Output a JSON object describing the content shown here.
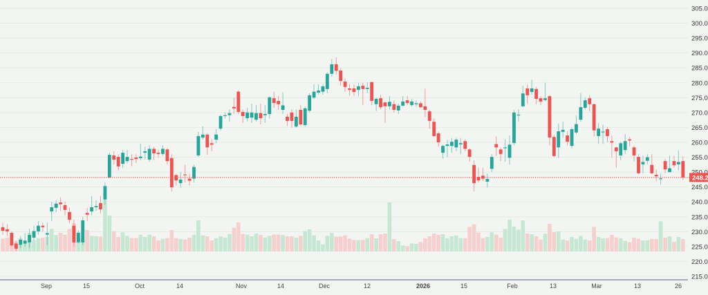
{
  "chart_data": {
    "type": "candlestick",
    "colors": {
      "up": "#26a69a",
      "down": "#ef5350",
      "volume_up": "#c6e7d3",
      "volume_down": "#f6cfcf",
      "background": "#f2f5f2",
      "last_price_line": "#ef5350"
    },
    "ylim": [
      215,
      305
    ],
    "y_ticks": [
      "305.0",
      "300.0",
      "295.0",
      "290.0",
      "285.0",
      "280.0",
      "275.0",
      "270.0",
      "265.0",
      "260.0",
      "255.0",
      "250.0",
      "245.0",
      "240.0",
      "235.0",
      "230.0",
      "225.0",
      "220.0",
      "215.0"
    ],
    "x_ticks": [
      {
        "label": "Sep",
        "bold": false
      },
      {
        "label": "15",
        "bold": false
      },
      {
        "label": "Oct",
        "bold": false
      },
      {
        "label": "14",
        "bold": false
      },
      {
        "label": "Nov",
        "bold": false
      },
      {
        "label": "14",
        "bold": false
      },
      {
        "label": "Dec",
        "bold": false
      },
      {
        "label": "12",
        "bold": false
      },
      {
        "label": "2026",
        "bold": true
      },
      {
        "label": "15",
        "bold": false
      },
      {
        "label": "Feb",
        "bold": false
      },
      {
        "label": "13",
        "bold": false
      },
      {
        "label": "Mar",
        "bold": false
      },
      {
        "label": "13",
        "bold": false
      },
      {
        "label": "26",
        "bold": false
      }
    ],
    "last_price": "248.2",
    "grid": true,
    "ohlc": [
      [
        231.5,
        233,
        229,
        230.3
      ],
      [
        230.8,
        232.5,
        228.5,
        230.1
      ],
      [
        229.6,
        230,
        225,
        225.4
      ],
      [
        226,
        227,
        223.5,
        224.3
      ],
      [
        225.6,
        228.5,
        224.5,
        227.3
      ],
      [
        226,
        229.5,
        225,
        227
      ],
      [
        226.4,
        231,
        224.5,
        228.9
      ],
      [
        228,
        232,
        227,
        230.2
      ],
      [
        230.1,
        233.5,
        229,
        232
      ],
      [
        232,
        233,
        230,
        231.5
      ],
      [
        229,
        233,
        225.5,
        229.5
      ],
      [
        236.8,
        240,
        233.5,
        238.2
      ],
      [
        238,
        240.5,
        236.5,
        239.4
      ],
      [
        239.8,
        241.5,
        237,
        239.2
      ],
      [
        238.9,
        240,
        235.5,
        237.3
      ],
      [
        236.6,
        238,
        233,
        234
      ],
      [
        232,
        234,
        225,
        226.4
      ],
      [
        226.4,
        230.5,
        226,
        229.6
      ],
      [
        226.4,
        235,
        225.5,
        233.8
      ],
      [
        236.3,
        238,
        233.5,
        235.7
      ],
      [
        236.8,
        242,
        235.5,
        238.2
      ],
      [
        238.2,
        240.5,
        237,
        238.6
      ],
      [
        239.6,
        242,
        236,
        237.5
      ],
      [
        240.8,
        246.5,
        239,
        245.3
      ],
      [
        248.2,
        256.5,
        248,
        255.8
      ],
      [
        255.6,
        257,
        252.5,
        254.2
      ],
      [
        255.1,
        256,
        250.5,
        251.9
      ],
      [
        252.8,
        257.5,
        251.5,
        256.5
      ],
      [
        253.7,
        257.5,
        253,
        255.1
      ],
      [
        254.4,
        256,
        252,
        254.2
      ],
      [
        254.9,
        256,
        253,
        254.4
      ],
      [
        254.7,
        259.5,
        254,
        255.2
      ],
      [
        256.5,
        258.5,
        254.2,
        257
      ],
      [
        254.2,
        259,
        253.5,
        257.8
      ],
      [
        257.8,
        258.5,
        254,
        256.3
      ],
      [
        256.5,
        257.5,
        254.8,
        256.1
      ],
      [
        256.1,
        259,
        255.5,
        257.8
      ],
      [
        257.6,
        258,
        252.6,
        253.7
      ],
      [
        254.7,
        256,
        243.5,
        244.9
      ],
      [
        249,
        249.5,
        245.5,
        247.2
      ],
      [
        246.3,
        250,
        244.8,
        247.5
      ],
      [
        249.2,
        252.5,
        246.5,
        249
      ],
      [
        247.8,
        249.5,
        245.5,
        247.1
      ],
      [
        247.8,
        252.5,
        246.5,
        251.7
      ],
      [
        255.6,
        263.5,
        255,
        262.1
      ],
      [
        261.6,
        265.3,
        261,
        262.6
      ],
      [
        262.6,
        263,
        255.8,
        258.3
      ],
      [
        259.7,
        261,
        257,
        259.2
      ],
      [
        260.9,
        264.5,
        259.7,
        262.6
      ],
      [
        264.6,
        269.3,
        264,
        268.8
      ],
      [
        268.9,
        270,
        268,
        269.1
      ],
      [
        269.1,
        271,
        267,
        269.8
      ],
      [
        271.9,
        275,
        269.5,
        271.4
      ],
      [
        277,
        277.5,
        269.5,
        270.2
      ],
      [
        270.2,
        271,
        266.5,
        268.8
      ],
      [
        268.1,
        271.5,
        267,
        270
      ],
      [
        268.3,
        273,
        266.5,
        270
      ],
      [
        267.6,
        272.5,
        267,
        269.8
      ],
      [
        269.8,
        273,
        266,
        268.1
      ],
      [
        269.1,
        272.5,
        266.5,
        269.5
      ],
      [
        269.5,
        275.5,
        268,
        275.1
      ],
      [
        274.8,
        277,
        271.5,
        273.2
      ],
      [
        273.9,
        275.5,
        271,
        272.8
      ],
      [
        270.9,
        276.8,
        269.5,
        272.4
      ],
      [
        268.6,
        269.5,
        265.5,
        267.2
      ],
      [
        270,
        271,
        264.9,
        267.2
      ],
      [
        265.3,
        271,
        264.9,
        268.6
      ],
      [
        270.9,
        272.5,
        265.5,
        266
      ],
      [
        265.8,
        272,
        265.3,
        271.4
      ],
      [
        270.6,
        276.5,
        270,
        275.8
      ],
      [
        275,
        279.5,
        274.5,
        277
      ],
      [
        276.7,
        279.5,
        276,
        277.4
      ],
      [
        277,
        279.5,
        276,
        278.8
      ],
      [
        277.9,
        283.5,
        276.5,
        283
      ],
      [
        283,
        288,
        282,
        286.2
      ],
      [
        286.2,
        288.5,
        282.8,
        284
      ],
      [
        284.1,
        285,
        279,
        280.6
      ],
      [
        280.4,
        281.5,
        277,
        278.6
      ],
      [
        278.1,
        279.5,
        275.6,
        277.6
      ],
      [
        278.1,
        279.5,
        275.5,
        276.9
      ],
      [
        277.6,
        280,
        275.5,
        278.8
      ],
      [
        279,
        280,
        272.5,
        277.9
      ],
      [
        277.9,
        280.2,
        276.5,
        278.3
      ],
      [
        280.2,
        280.5,
        272.5,
        273.9
      ],
      [
        272.8,
        275,
        270.5,
        274.6
      ],
      [
        274.8,
        276,
        271,
        271.8
      ],
      [
        273.4,
        273.8,
        266.6,
        272.1
      ],
      [
        272.1,
        275.5,
        271,
        273.6
      ],
      [
        272.8,
        274,
        270,
        270.9
      ],
      [
        270.7,
        273,
        269.5,
        272.3
      ],
      [
        272.3,
        275.5,
        272,
        273.7
      ],
      [
        274.1,
        275.5,
        272.5,
        273.2
      ],
      [
        272.5,
        274.5,
        272,
        273.7
      ],
      [
        272.8,
        274,
        272,
        273.1
      ],
      [
        273.1,
        273.7,
        271.5,
        271.8
      ],
      [
        272.1,
        278,
        268.5,
        270.9
      ],
      [
        270.4,
        271,
        264.5,
        267.2
      ],
      [
        266.9,
        268,
        261.8,
        262.1
      ],
      [
        263,
        263.5,
        258.5,
        260
      ],
      [
        256.5,
        259.2,
        254.5,
        258.8
      ],
      [
        258.8,
        260.8,
        255,
        259.3
      ],
      [
        258.8,
        261.5,
        256.5,
        260.2
      ],
      [
        258.3,
        261.5,
        257,
        260.9
      ],
      [
        259.3,
        261.5,
        256,
        259.7
      ],
      [
        260.4,
        261,
        257,
        257.8
      ],
      [
        257.6,
        258,
        253.5,
        255.1
      ],
      [
        252.4,
        254,
        243.5,
        246.3
      ],
      [
        248.4,
        251.5,
        246.5,
        247.2
      ],
      [
        248.8,
        251.5,
        247,
        247.8
      ],
      [
        246.8,
        249.5,
        244.8,
        247.7
      ],
      [
        251.1,
        256,
        250,
        255.1
      ],
      [
        259.4,
        262,
        255.5,
        258.3
      ],
      [
        257.6,
        258.3,
        253.7,
        256.1
      ],
      [
        258.1,
        261,
        253.5,
        258.3
      ],
      [
        254.8,
        262.3,
        252.5,
        259.2
      ],
      [
        259.8,
        270.8,
        259,
        270
      ],
      [
        269.1,
        271,
        267,
        269.3
      ],
      [
        272.1,
        279,
        271.8,
        276.4
      ],
      [
        278.1,
        279.4,
        273,
        275.8
      ],
      [
        276.9,
        281,
        276,
        278.1
      ],
      [
        277.9,
        278.6,
        272.8,
        274.6
      ],
      [
        274.8,
        275.5,
        272.5,
        273.7
      ],
      [
        274.2,
        280,
        273.8,
        274.8
      ],
      [
        275.5,
        275.8,
        259,
        261.6
      ],
      [
        261.8,
        262.5,
        255,
        255.4
      ],
      [
        258.3,
        266.3,
        254.8,
        263.7
      ],
      [
        263.5,
        267,
        261.5,
        264.2
      ],
      [
        262.3,
        263.8,
        259,
        260.2
      ],
      [
        258.8,
        265,
        258,
        264.4
      ],
      [
        263.3,
        269,
        262.8,
        266.1
      ],
      [
        267.6,
        276.5,
        267,
        271.8
      ],
      [
        271.6,
        275,
        271,
        274.1
      ],
      [
        274.8,
        275.8,
        270.4,
        272.8
      ],
      [
        272.8,
        273,
        262,
        264
      ],
      [
        262.1,
        266.5,
        259.5,
        264.6
      ],
      [
        263.4,
        266,
        259.4,
        263.6
      ],
      [
        264.4,
        265.2,
        260,
        262.1
      ],
      [
        260.4,
        262.3,
        254.8,
        259.9
      ],
      [
        258.3,
        258.5,
        251.5,
        257
      ],
      [
        255.6,
        260.2,
        254,
        259.7
      ],
      [
        257.4,
        262.8,
        256,
        260.4
      ],
      [
        261,
        261.8,
        258.6,
        260.6
      ],
      [
        258.3,
        258.8,
        253.6,
        255.6
      ],
      [
        255.1,
        256,
        249.3,
        249.6
      ],
      [
        252.6,
        255.5,
        249.6,
        253.4
      ],
      [
        253.8,
        256,
        252.6,
        255
      ],
      [
        252.4,
        256,
        249.3,
        249.6
      ],
      [
        249.1,
        251,
        246.9,
        248.6
      ],
      [
        247.8,
        249.5,
        245.8,
        247.9
      ],
      [
        253.7,
        254.5,
        249.6,
        250.9
      ],
      [
        250,
        255.5,
        250,
        251.3
      ],
      [
        253.7,
        255.5,
        251.5,
        252.3
      ],
      [
        252.6,
        257.2,
        250.6,
        253.4
      ],
      [
        253.7,
        255.3,
        247.3,
        248.2
      ]
    ],
    "volume": [
      56,
      60,
      28,
      43,
      58,
      38,
      81,
      48,
      58,
      60,
      63,
      98,
      71,
      81,
      73,
      98,
      123,
      83,
      63,
      93,
      68,
      66,
      65,
      223,
      156,
      88,
      63,
      83,
      68,
      58,
      58,
      73,
      63,
      73,
      66,
      48,
      55,
      58,
      93,
      58,
      54,
      52,
      60,
      73,
      135,
      70,
      66,
      48,
      58,
      66,
      60,
      76,
      103,
      126,
      76,
      73,
      66,
      78,
      72,
      61,
      68,
      73,
      73,
      71,
      66,
      66,
      60,
      68,
      88,
      96,
      70,
      48,
      31,
      68,
      80,
      65,
      65,
      70,
      56,
      50,
      49,
      50,
      58,
      75,
      57,
      75,
      78,
      213,
      54,
      45,
      26,
      23,
      35,
      33,
      41,
      57,
      66,
      78,
      72,
      75,
      58,
      66,
      69,
      58,
      58,
      107,
      118,
      82,
      58,
      63,
      83,
      73,
      60,
      98,
      138,
      108,
      95,
      135,
      78,
      75,
      66,
      52,
      77,
      120,
      84,
      87,
      52,
      48,
      63,
      55,
      68,
      52,
      48,
      107,
      63,
      57,
      58,
      72,
      61,
      57,
      46,
      40,
      60,
      55,
      48,
      49,
      54,
      54,
      131,
      60,
      66,
      42,
      63,
      54
    ]
  }
}
